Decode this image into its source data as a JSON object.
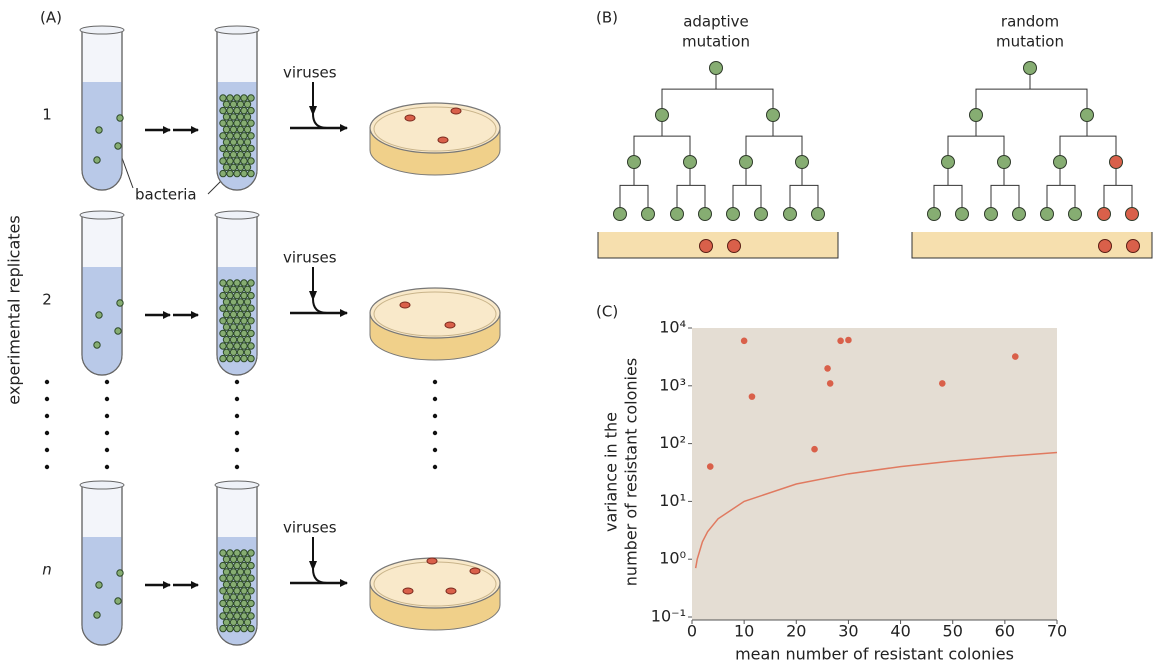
{
  "panel_a": {
    "label": "(A)",
    "replicate_labels": [
      "1",
      "2",
      "n"
    ],
    "virus_labels": [
      "viruses",
      "viruses",
      "viruses"
    ],
    "bacteria_label": "bacteria",
    "axis_label": "experimental replicates"
  },
  "panel_b": {
    "label": "(B)",
    "trees": [
      {
        "title": [
          "adaptive",
          "mutation"
        ]
      },
      {
        "title": [
          "random",
          "mutation"
        ]
      }
    ]
  },
  "chart_data": {
    "type": "scatter",
    "label": "(C)",
    "x_label": "mean number of resistant colonies",
    "y_label": [
      "variance in the",
      "number of resistant colonies"
    ],
    "log_y": true,
    "xlim": [
      0,
      70
    ],
    "xticks": [
      0,
      10,
      20,
      30,
      40,
      50,
      60,
      70
    ],
    "ylim": [
      0.1,
      10000
    ],
    "yticks": [
      {
        "value": 0.1,
        "label": "10⁻¹"
      },
      {
        "value": 1,
        "label": "10⁰"
      },
      {
        "value": 10,
        "label": "10¹"
      },
      {
        "value": 100,
        "label": "10²"
      },
      {
        "value": 1000,
        "label": "10³"
      },
      {
        "value": 10000,
        "label": "10⁴"
      }
    ],
    "background": "#e4ddd3",
    "series": [
      {
        "kind": "points",
        "color": "#d9604a",
        "x": [
          3.5,
          10,
          11.5,
          23.5,
          26,
          26.5,
          28.5,
          30,
          48,
          62
        ],
        "values": [
          40,
          6000,
          650,
          80,
          2000,
          1100,
          6000,
          6200,
          1100,
          3200
        ]
      },
      {
        "kind": "line",
        "color": "#e07a60",
        "x": [
          0.7,
          1,
          2,
          3,
          5,
          10,
          20,
          30,
          40,
          50,
          60,
          70
        ],
        "values": [
          0.7,
          1,
          2,
          3,
          5,
          10,
          20,
          30,
          40,
          50,
          60,
          70
        ]
      }
    ]
  }
}
